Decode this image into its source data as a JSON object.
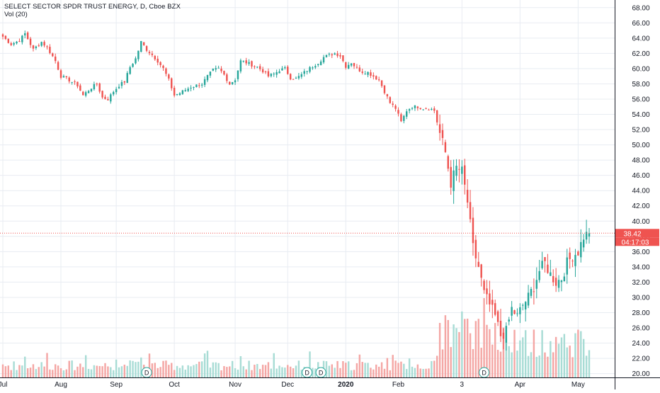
{
  "header": {
    "title": "SELECT SECTOR SPDR TRUST ENERGY, D, Cboe BZX",
    "volume_label": "Vol (20)"
  },
  "price_tags": {
    "last_price": "38.42",
    "countdown": "04:17:03"
  },
  "dividend_marker": "D",
  "colors": {
    "up": "#26a69a",
    "down": "#ef5350",
    "vol_up": "#a8dcd5",
    "vol_down": "#f4a6a4",
    "grid": "#e8ecf2",
    "axis_text": "#131722",
    "price_line": "#ef5350"
  },
  "chart_data": {
    "type": "candlestick",
    "title": "SELECT SECTOR SPDR TRUST ENERGY, D, Cboe BZX",
    "y_ticks": [
      "20.00",
      "22.00",
      "24.00",
      "26.00",
      "28.00",
      "30.00",
      "32.00",
      "34.00",
      "36.00",
      "38.00",
      "40.00",
      "42.00",
      "44.00",
      "46.00",
      "48.00",
      "50.00",
      "52.00",
      "54.00",
      "56.00",
      "58.00",
      "60.00",
      "62.00",
      "64.00",
      "66.00",
      "68.00"
    ],
    "ylim": [
      19.5,
      69
    ],
    "x_ticks": [
      "Jul",
      "Aug",
      "Sep",
      "Oct",
      "Nov",
      "Dec",
      "2020",
      "Feb",
      "3",
      "Apr",
      "May"
    ],
    "x_tick_days": [
      0,
      21,
      41,
      62,
      84,
      103,
      124,
      143,
      166,
      187,
      208
    ],
    "x_days_total": 213,
    "last_price": 38.42,
    "dividend_days": [
      52,
      110,
      115,
      174
    ],
    "anchors": [
      [
        0,
        64.2
      ],
      [
        3,
        63.2
      ],
      [
        6,
        63.7
      ],
      [
        8,
        64.6
      ],
      [
        11,
        62.5
      ],
      [
        14,
        63.5
      ],
      [
        16,
        62.8
      ],
      [
        19,
        61.0
      ],
      [
        21,
        59.0
      ],
      [
        24,
        58.5
      ],
      [
        27,
        57.8
      ],
      [
        29,
        56.5
      ],
      [
        32,
        57.5
      ],
      [
        34,
        58.0
      ],
      [
        36,
        56.2
      ],
      [
        38,
        56.0
      ],
      [
        40,
        57.0
      ],
      [
        42,
        57.8
      ],
      [
        44,
        58.3
      ],
      [
        46,
        60.2
      ],
      [
        48,
        61.3
      ],
      [
        50,
        63.5
      ],
      [
        52,
        62.5
      ],
      [
        54,
        61.8
      ],
      [
        56,
        61.0
      ],
      [
        58,
        60.0
      ],
      [
        60,
        58.5
      ],
      [
        62,
        56.5
      ],
      [
        64,
        56.8
      ],
      [
        66,
        57.2
      ],
      [
        68,
        57.6
      ],
      [
        70,
        57.8
      ],
      [
        72,
        58.0
      ],
      [
        74,
        59.0
      ],
      [
        76,
        59.8
      ],
      [
        78,
        60.0
      ],
      [
        80,
        59.2
      ],
      [
        82,
        58.0
      ],
      [
        84,
        58.6
      ],
      [
        86,
        61.0
      ],
      [
        88,
        60.8
      ],
      [
        90,
        60.5
      ],
      [
        92,
        60.2
      ],
      [
        94,
        59.7
      ],
      [
        96,
        59.0
      ],
      [
        98,
        59.3
      ],
      [
        100,
        59.8
      ],
      [
        102,
        60.0
      ],
      [
        104,
        58.8
      ],
      [
        106,
        58.7
      ],
      [
        108,
        59.2
      ],
      [
        110,
        59.8
      ],
      [
        112,
        60.3
      ],
      [
        114,
        60.8
      ],
      [
        116,
        61.5
      ],
      [
        118,
        61.8
      ],
      [
        120,
        62.0
      ],
      [
        122,
        61.7
      ],
      [
        124,
        60.3
      ],
      [
        126,
        60.8
      ],
      [
        128,
        60.0
      ],
      [
        130,
        59.6
      ],
      [
        132,
        59.5
      ],
      [
        134,
        59.0
      ],
      [
        136,
        58.5
      ],
      [
        138,
        57.0
      ],
      [
        140,
        55.5
      ],
      [
        142,
        54.8
      ],
      [
        144,
        53.0
      ],
      [
        146,
        54.5
      ],
      [
        148,
        55.0
      ],
      [
        150,
        55.0
      ],
      [
        152,
        54.8
      ],
      [
        154,
        54.8
      ],
      [
        156,
        54.5
      ],
      [
        158,
        51.5
      ],
      [
        160,
        49.0
      ],
      [
        162,
        45.0
      ],
      [
        164,
        47.0
      ],
      [
        166,
        46.5
      ],
      [
        168,
        42.5
      ],
      [
        170,
        36.5
      ],
      [
        172,
        34.0
      ],
      [
        174,
        30.5
      ],
      [
        176,
        29.0
      ],
      [
        178,
        27.5
      ],
      [
        180,
        25.0
      ],
      [
        182,
        25.5
      ],
      [
        184,
        28.5
      ],
      [
        186,
        27.5
      ],
      [
        188,
        29.0
      ],
      [
        190,
        30.0
      ],
      [
        192,
        31.5
      ],
      [
        194,
        33.5
      ],
      [
        196,
        34.5
      ],
      [
        198,
        33.0
      ],
      [
        200,
        32.0
      ],
      [
        202,
        32.5
      ],
      [
        204,
        34.5
      ],
      [
        206,
        35.5
      ],
      [
        208,
        36.0
      ],
      [
        210,
        38.0
      ],
      [
        212,
        38.42
      ]
    ]
  }
}
